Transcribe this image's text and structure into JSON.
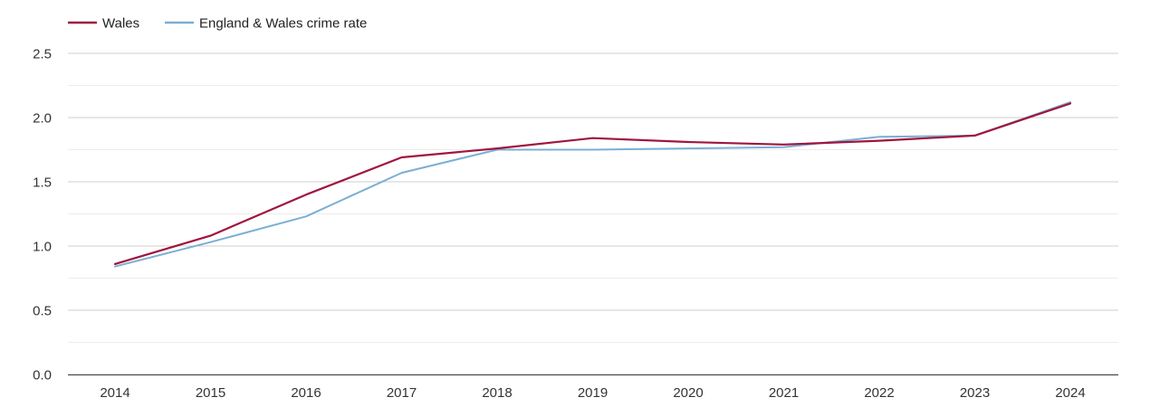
{
  "chart_data": {
    "type": "line",
    "title": "",
    "xlabel": "",
    "ylabel": "",
    "x": [
      2014,
      2015,
      2016,
      2017,
      2018,
      2019,
      2020,
      2021,
      2022,
      2023,
      2024
    ],
    "x_tick_labels": [
      "2014",
      "2015",
      "2016",
      "2017",
      "2018",
      "2019",
      "2020",
      "2021",
      "2022",
      "2023",
      "2024"
    ],
    "ylim": [
      0,
      2.5
    ],
    "y_ticks": [
      0,
      0.5,
      1,
      1.5,
      2,
      2.5
    ],
    "y_tick_labels": [
      "0.0",
      "0.5",
      "1.0",
      "1.5",
      "2.0",
      "2.5"
    ],
    "grid": true,
    "legend_position": "top-left",
    "series": [
      {
        "name": "Wales",
        "color": "#a0153e",
        "values": [
          0.86,
          1.08,
          1.4,
          1.69,
          1.76,
          1.84,
          1.81,
          1.79,
          1.82,
          1.86,
          2.11
        ]
      },
      {
        "name": "England & Wales crime rate",
        "color": "#7bafd4",
        "values": [
          0.84,
          1.03,
          1.23,
          1.57,
          1.75,
          1.75,
          1.76,
          1.77,
          1.85,
          1.86,
          2.12
        ]
      }
    ]
  }
}
